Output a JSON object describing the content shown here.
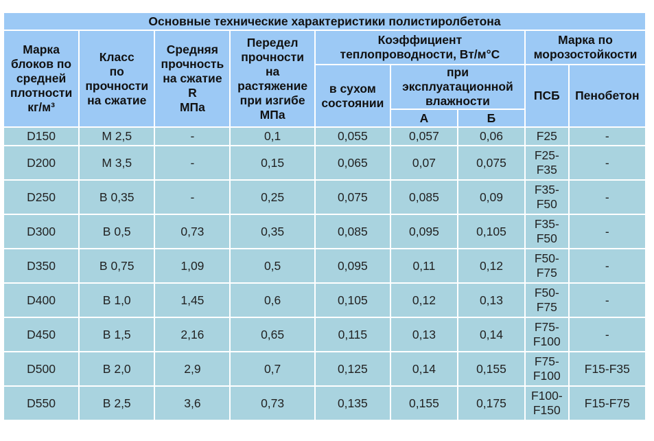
{
  "table": {
    "title": "Основные технические характеристики полистиролбетона",
    "headers": {
      "density_mark": "Марка\nблоков по\nсредней\nплотности\nкг/м³",
      "strength_class": "Класс\nпо\nпрочности\nна сжатие",
      "avg_strength": "Средняя\nпрочность\nна сжатие\nR\nМПа",
      "tensile_limit": "Передел\nпрочности\nна\nрастяжение\nпри изгибе\nМПа",
      "conductivity": "Коэффициент\nтеплопроводности, Вт/м°С",
      "dry_state": "в сухом\nсостоянии",
      "operating_humidity": "при\nэксплуатационной\nвлажности",
      "humidity_a": "А",
      "humidity_b": "Б",
      "frost_mark": "Марка по\nморозостойкости",
      "psb": "ПСБ",
      "foam_concrete": "Пенобетон"
    },
    "rows": [
      {
        "mark": "D150",
        "cls": "М 2,5",
        "avg": "-",
        "tensile": "0,1",
        "dry": "0,055",
        "a": "0,057",
        "b": "0,06",
        "psb": "F25",
        "foam": "-"
      },
      {
        "mark": "D200",
        "cls": "М 3,5",
        "avg": "-",
        "tensile": "0,15",
        "dry": "0,065",
        "a": "0,07",
        "b": "0,075",
        "psb": "F25-\nF35",
        "foam": "-"
      },
      {
        "mark": "D250",
        "cls": "В 0,35",
        "avg": "-",
        "tensile": "0,25",
        "dry": "0,075",
        "a": "0,085",
        "b": "0,09",
        "psb": "F35-\nF50",
        "foam": "-"
      },
      {
        "mark": "D300",
        "cls": "В 0,5",
        "avg": "0,73",
        "tensile": "0,35",
        "dry": "0,085",
        "a": "0,095",
        "b": "0,105",
        "psb": "F35-\nF50",
        "foam": "-"
      },
      {
        "mark": "D350",
        "cls": "В 0,75",
        "avg": "1,09",
        "tensile": "0,5",
        "dry": "0,095",
        "a": "0,11",
        "b": "0,12",
        "psb": "F50-\nF75",
        "foam": "-"
      },
      {
        "mark": "D400",
        "cls": "В 1,0",
        "avg": "1,45",
        "tensile": "0,6",
        "dry": "0,105",
        "a": "0,12",
        "b": "0,13",
        "psb": "F50-\nF75",
        "foam": "-"
      },
      {
        "mark": "D450",
        "cls": "В 1,5",
        "avg": "2,16",
        "tensile": "0,65",
        "dry": "0,115",
        "a": "0,13",
        "b": "0,14",
        "psb": "F75-\nF100",
        "foam": "-"
      },
      {
        "mark": "D500",
        "cls": "В 2,0",
        "avg": "2,9",
        "tensile": "0,7",
        "dry": "0,125",
        "a": "0,14",
        "b": "0,155",
        "psb": "F75-\nF100",
        "foam": "F15-F35"
      },
      {
        "mark": "D550",
        "cls": "В 2,5",
        "avg": "3,6",
        "tensile": "0,73",
        "dry": "0,135",
        "a": "0,155",
        "b": "0,175",
        "psb": "F100-\nF150",
        "foam": "F15-F75"
      }
    ]
  }
}
